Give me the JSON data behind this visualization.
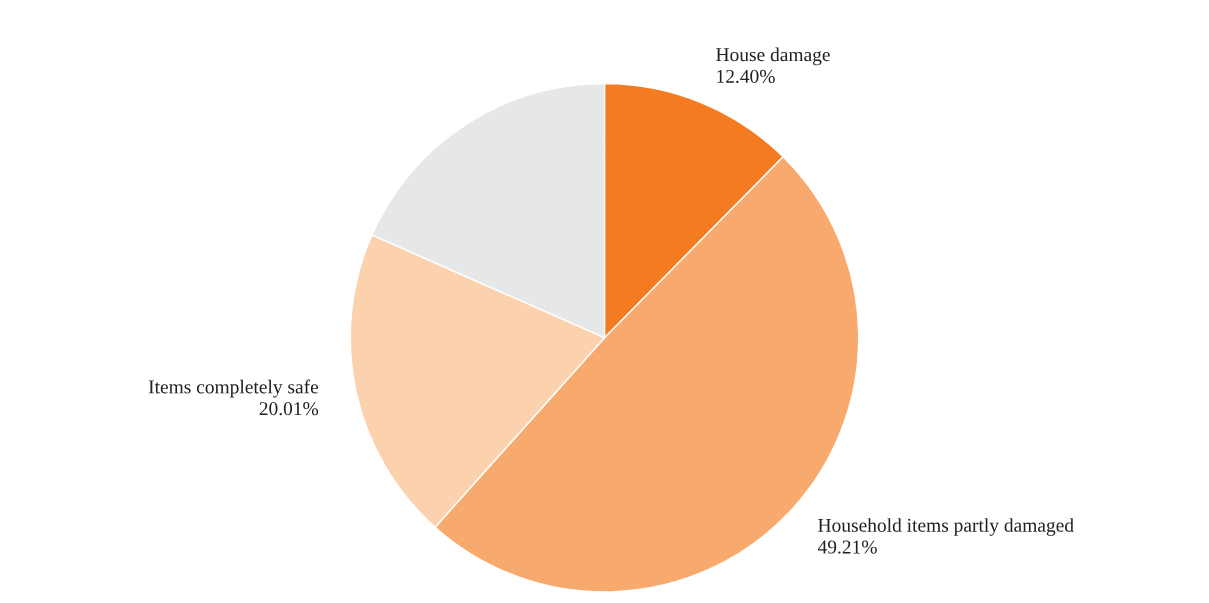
{
  "chart_data": {
    "type": "pie",
    "categories": [
      "House damage",
      "Household items partly damaged",
      "Items completely safe",
      null
    ],
    "values": [
      12.4,
      49.21,
      20.01,
      18.38
    ],
    "value_labels": [
      "12.40%",
      "49.21%",
      "20.01%",
      null
    ],
    "colors": [
      "#f47b20",
      "#f8aa6e",
      "#fcd2ae",
      "#e6e7e8"
    ]
  }
}
